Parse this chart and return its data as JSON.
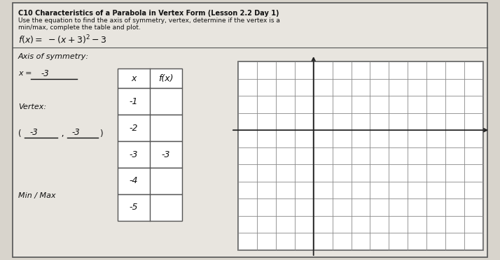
{
  "title_line1": "C10 Characteristics of a Parabola in Vertex Form (Lesson 2.2 Day 1)",
  "title_line2": "Use the equation to find the axis of symmetry, vertex, determine if the vertex is a",
  "title_line3": "min/max, complete the table and plot.",
  "axis_of_symmetry_label": "Axis of symmetry:",
  "x_equals_label": "x = ",
  "x_equals_value": "-3",
  "vertex_label": "Vertex:",
  "min_max_label": "Min / Max",
  "table_headers": [
    "x",
    "f(x)"
  ],
  "table_x_values": [
    "-1",
    "-2",
    "-3",
    "-4",
    "-5"
  ],
  "table_fx_values": [
    "",
    "",
    "-3",
    "",
    ""
  ],
  "bg_color": "#d8d4cc",
  "paper_color": "#e8e5df",
  "border_color": "#555555",
  "grid_color": "#888888",
  "axis_color": "#222222",
  "text_color": "#111111",
  "grid_cols": 13,
  "grid_rows": 11,
  "axis_col": 4,
  "axis_row": 4
}
